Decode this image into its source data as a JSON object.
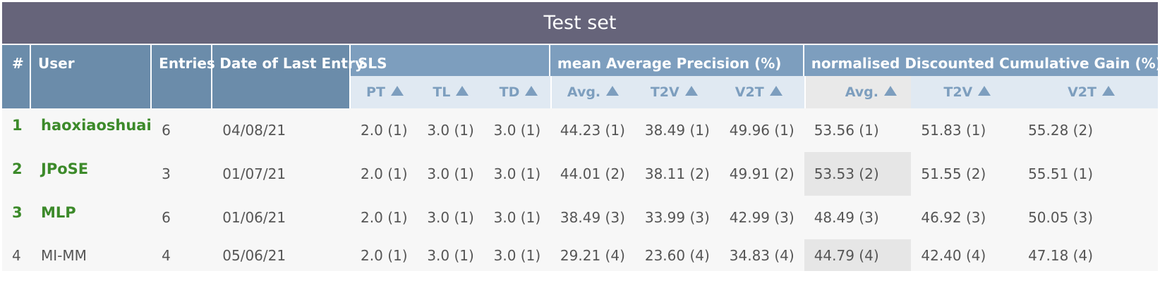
{
  "title": "Test set",
  "header": {
    "rank": "#",
    "user": "User",
    "entries": "Entries",
    "date": "Date of Last Entry",
    "sls": "SLS",
    "map": "mean Average Precision (%)",
    "ndcg": "normalised Discounted Cumulative Gain (%)"
  },
  "subheader": [
    "PT",
    "TL",
    "TD",
    "Avg.",
    "T2V",
    "V2T",
    "Avg.",
    "T2V",
    "V2T"
  ],
  "icons": {
    "sort": "triangle-up-icon"
  },
  "colors": {
    "title_bg": "#66647a",
    "header_bg": "#6b8caa",
    "group_bg": "#7d9ebe",
    "sub_bg": "#e0e9f2",
    "winner": "#3c8a2a"
  },
  "rows": [
    {
      "rank": "1",
      "user": "haoxiaoshuai",
      "entries": "6",
      "date": "04/08/21",
      "pt": "2.0 (1)",
      "tl": "3.0 (1)",
      "td": "3.0 (1)",
      "map_avg": "44.23 (1)",
      "map_t2v": "38.49 (1)",
      "map_v2t": "49.96 (1)",
      "ndcg_avg": "53.56 (1)",
      "ndcg_t2v": "51.83 (1)",
      "ndcg_v2t": "55.28 (2)"
    },
    {
      "rank": "2",
      "user": "JPoSE",
      "entries": "3",
      "date": "01/07/21",
      "pt": "2.0 (1)",
      "tl": "3.0 (1)",
      "td": "3.0 (1)",
      "map_avg": "44.01 (2)",
      "map_t2v": "38.11 (2)",
      "map_v2t": "49.91 (2)",
      "ndcg_avg": "53.53 (2)",
      "ndcg_t2v": "51.55 (2)",
      "ndcg_v2t": "55.51 (1)"
    },
    {
      "rank": "3",
      "user": "MLP",
      "entries": "6",
      "date": "01/06/21",
      "pt": "2.0 (1)",
      "tl": "3.0 (1)",
      "td": "3.0 (1)",
      "map_avg": "38.49 (3)",
      "map_t2v": "33.99 (3)",
      "map_v2t": "42.99 (3)",
      "ndcg_avg": "48.49 (3)",
      "ndcg_t2v": "46.92 (3)",
      "ndcg_v2t": "50.05 (3)"
    },
    {
      "rank": "4",
      "user": "MI-MM",
      "entries": "4",
      "date": "05/06/21",
      "pt": "2.0 (1)",
      "tl": "3.0 (1)",
      "td": "3.0 (1)",
      "map_avg": "29.21 (4)",
      "map_t2v": "23.60 (4)",
      "map_v2t": "34.83 (4)",
      "ndcg_avg": "44.79 (4)",
      "ndcg_t2v": "42.40 (4)",
      "ndcg_v2t": "47.18 (4)"
    }
  ]
}
